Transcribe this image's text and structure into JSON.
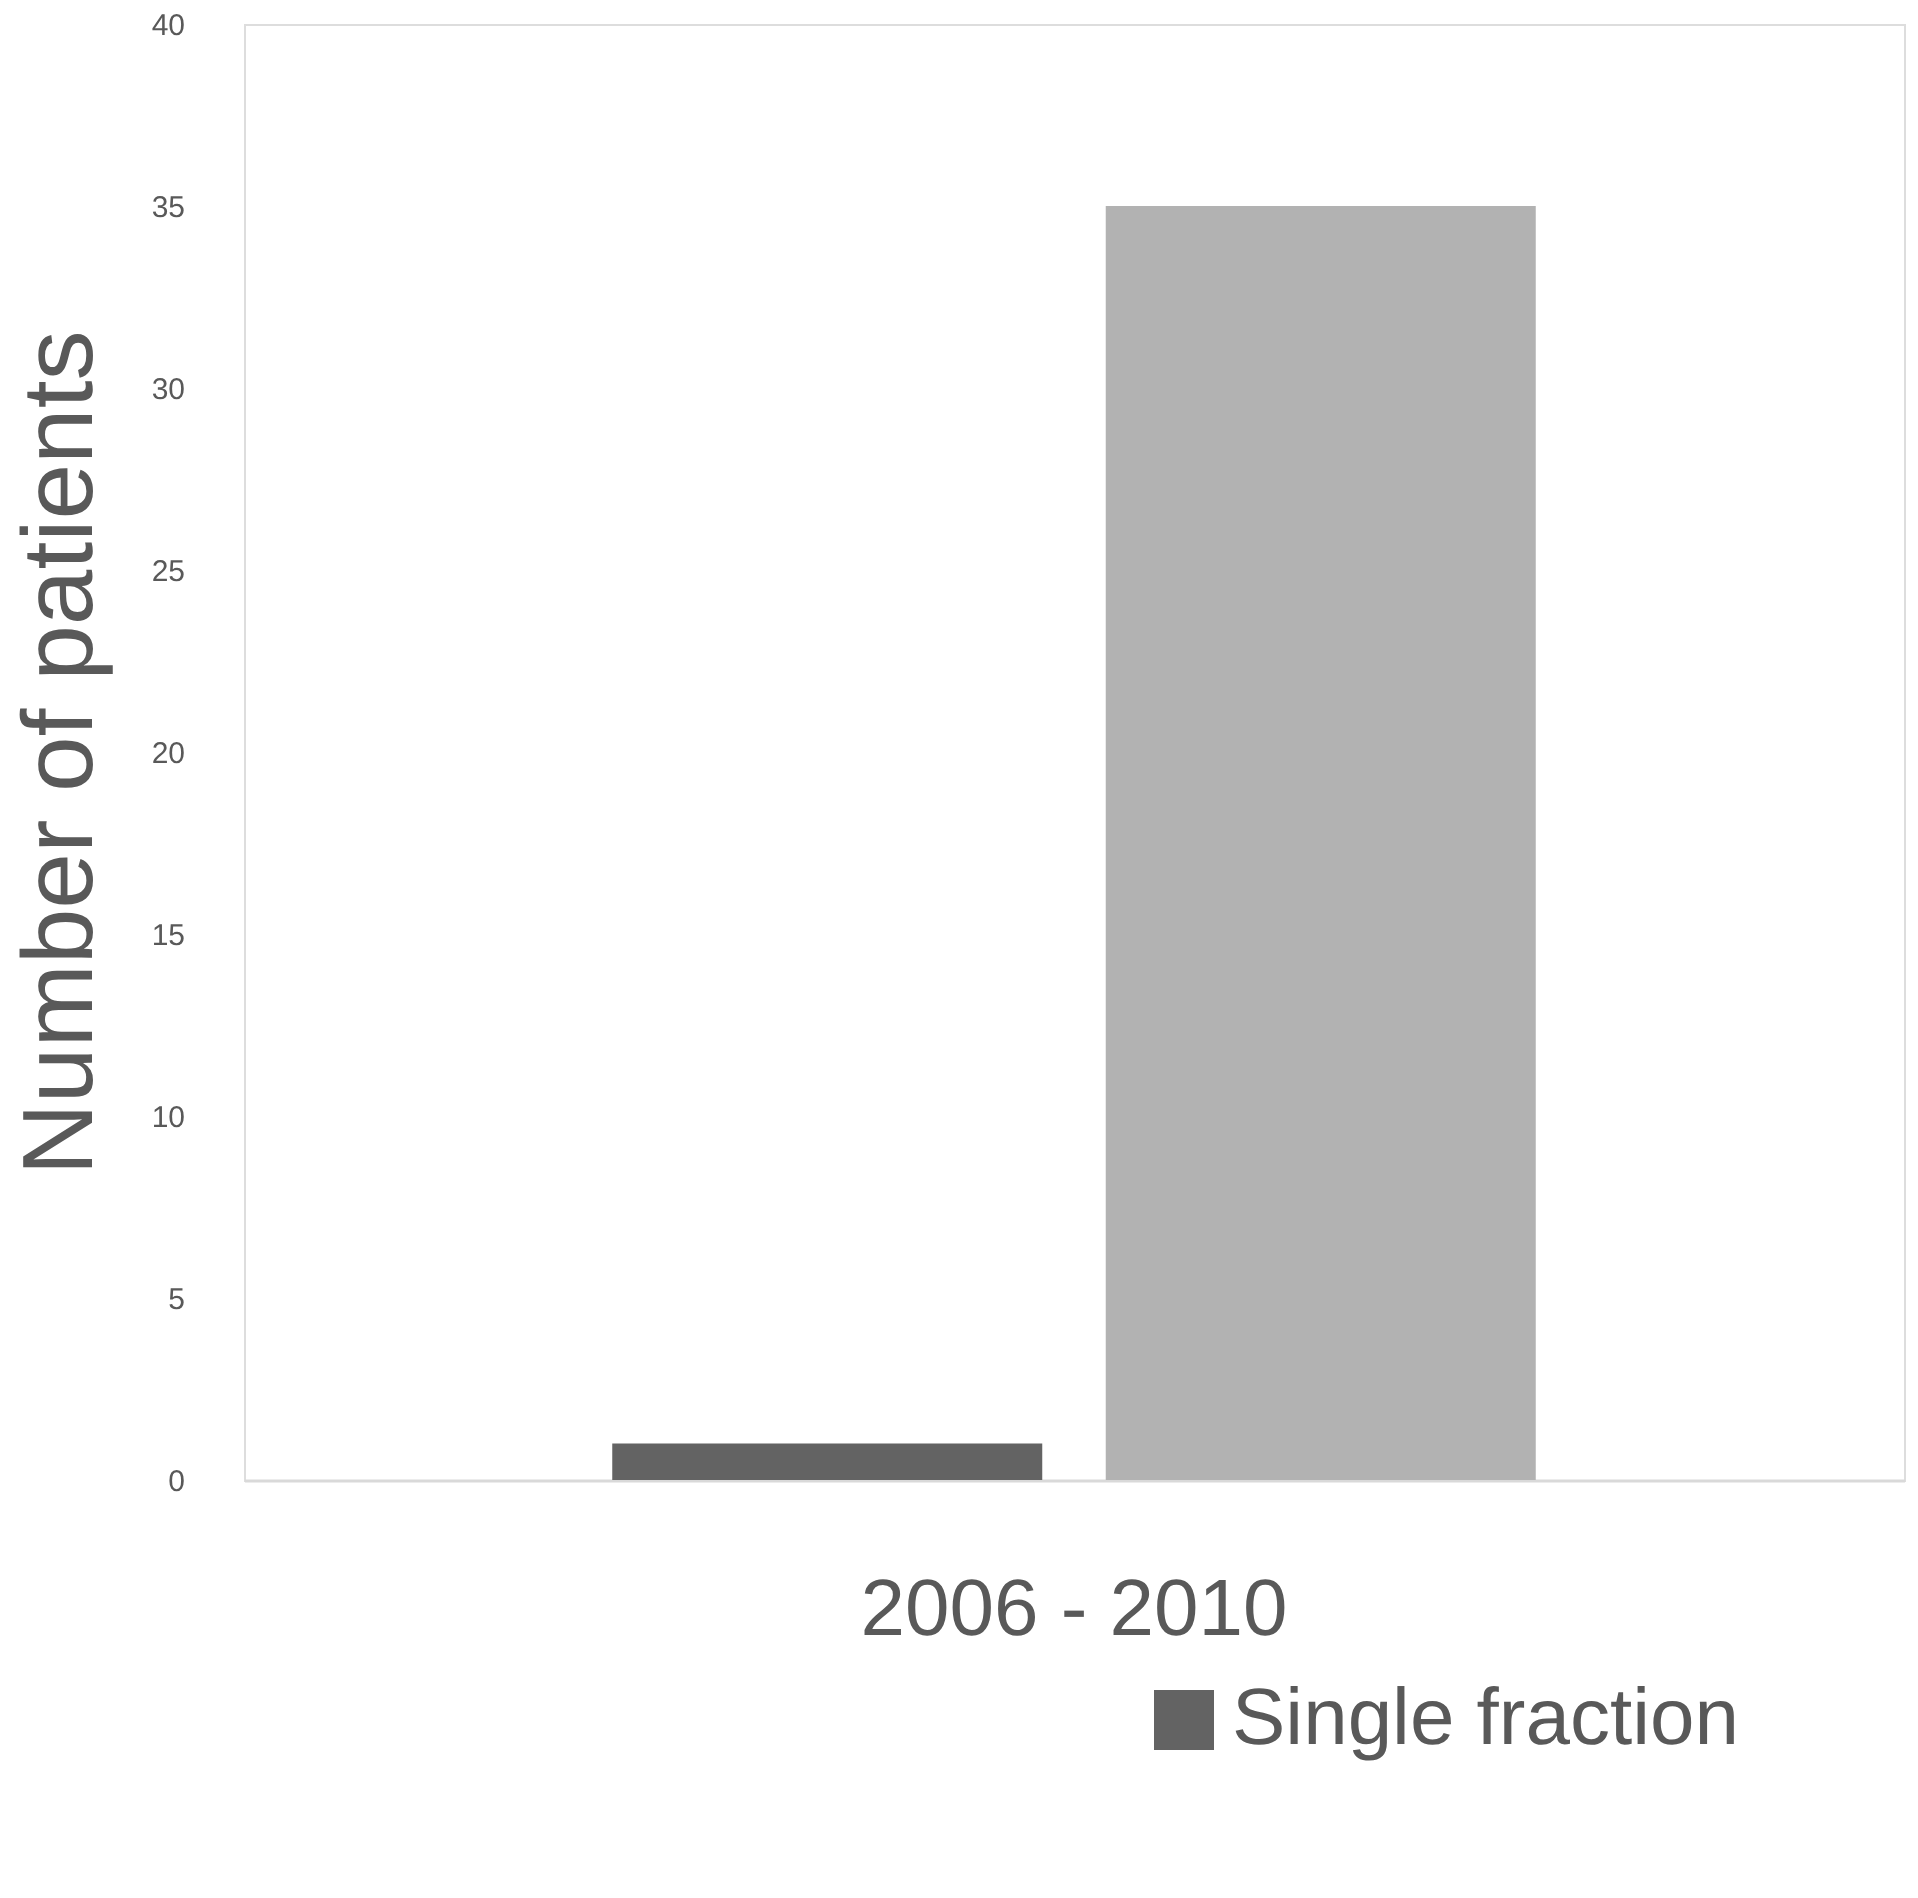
{
  "chart_data": {
    "type": "bar",
    "ylabel": "Number of patients",
    "categories": [
      "2006 - 2010"
    ],
    "series": [
      {
        "name": "Single fraction",
        "color": "#636363",
        "values": [
          1
        ]
      },
      {
        "color": "#b2b2b2",
        "values": [
          35
        ]
      }
    ],
    "ylim": [
      0,
      40
    ],
    "yticks": [
      0,
      5,
      10,
      15,
      20,
      25,
      30,
      35,
      40
    ],
    "grid": false,
    "legend": "bottom right"
  }
}
